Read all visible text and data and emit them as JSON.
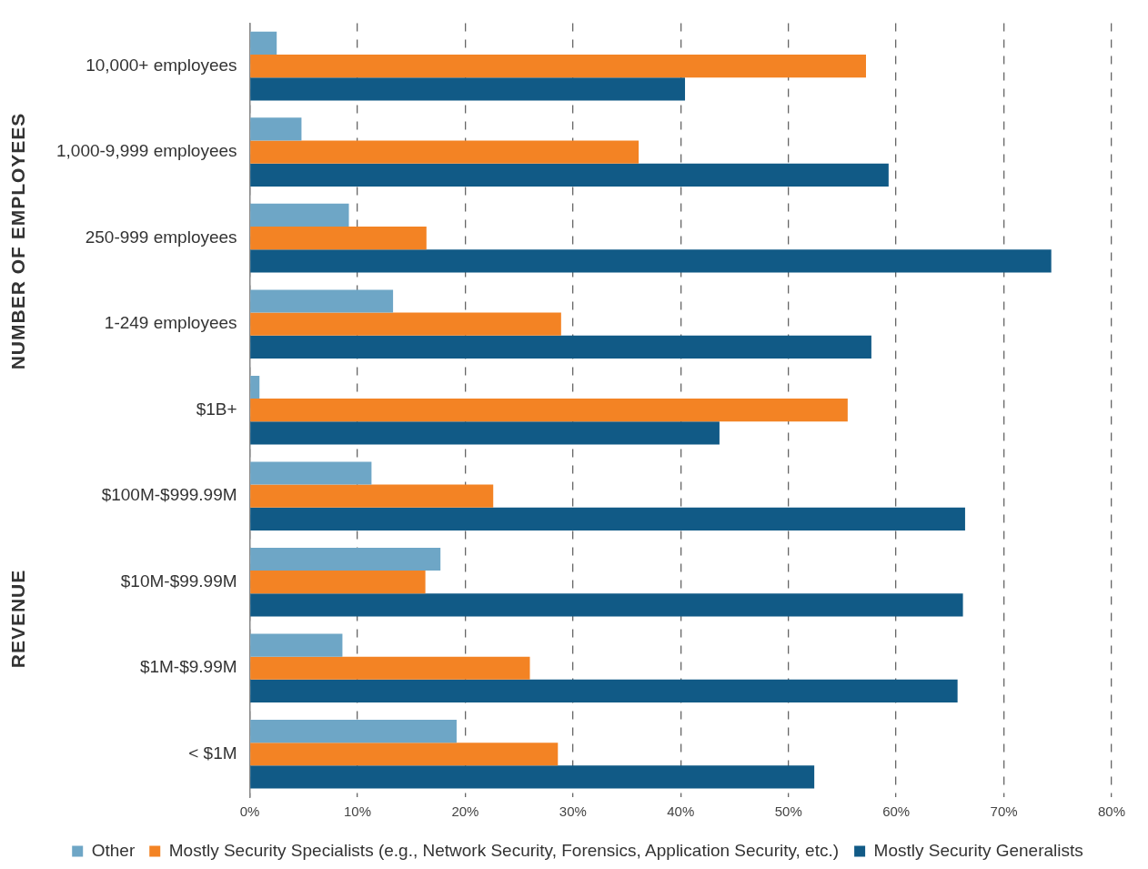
{
  "chart_data": {
    "type": "bar",
    "orientation": "horizontal",
    "categories": [
      "10,000+ employees",
      "1,000-9,999 employees",
      "250-999 employees",
      "1-249 employees",
      "$1B+",
      "$100M-$999.99M",
      "$10M-$99.99M",
      "$1M-$9.99M",
      "< $1M"
    ],
    "series": [
      {
        "name": "Other",
        "color": "#6ea6c6",
        "values": [
          2.5,
          4.8,
          9.2,
          13.3,
          0.9,
          11.3,
          17.7,
          8.6,
          19.2
        ]
      },
      {
        "name": "Mostly Security Specialists (e.g., Network Security, Forensics, Application Security, etc.)",
        "color": "#f38324",
        "values": [
          57.2,
          36.1,
          16.4,
          28.9,
          55.5,
          22.6,
          16.3,
          26.0,
          28.6
        ]
      },
      {
        "name": "Mostly Security Generalists",
        "color": "#115a86",
        "values": [
          40.4,
          59.3,
          74.4,
          57.7,
          43.6,
          66.4,
          66.2,
          65.7,
          52.4
        ]
      }
    ],
    "xlim": [
      0,
      80
    ],
    "xticks": [
      {
        "value": 0,
        "label": "0%"
      },
      {
        "value": 10,
        "label": "10%"
      },
      {
        "value": 20,
        "label": "20%"
      },
      {
        "value": 30,
        "label": "30%"
      },
      {
        "value": 40,
        "label": "40%"
      },
      {
        "value": 50,
        "label": "50%"
      },
      {
        "value": 60,
        "label": "60%"
      },
      {
        "value": 70,
        "label": "70%"
      },
      {
        "value": 80,
        "label": "80%"
      }
    ],
    "grid": "x",
    "legend": "bottom",
    "annotations": [
      "NUMBER OF EMPLOYEES",
      "REVENUE"
    ]
  }
}
